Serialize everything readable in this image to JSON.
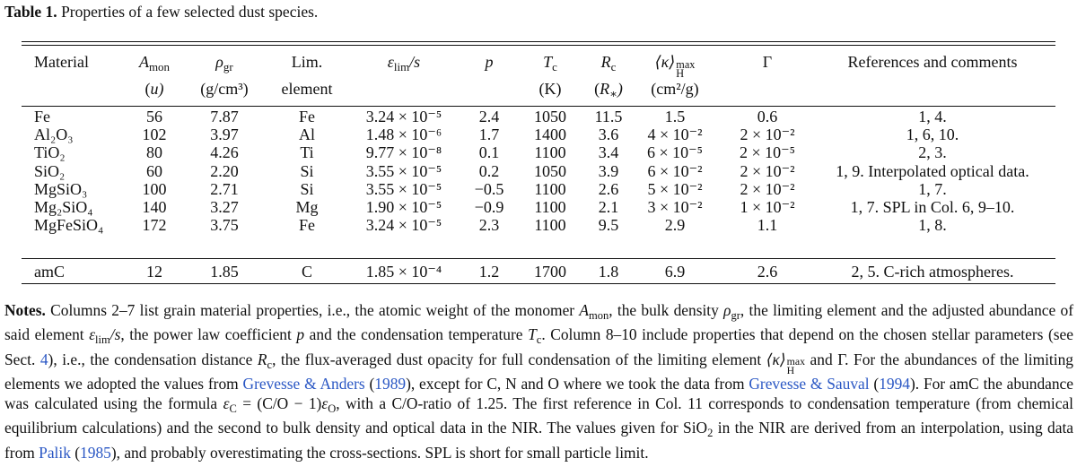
{
  "title": {
    "label": "Table 1.",
    "text": "Properties of a few selected dust species."
  },
  "table": {
    "header": [
      {
        "text": "Material"
      },
      {
        "base": "A",
        "sub": "mon"
      },
      {
        "base": "ρ",
        "sub": "gr"
      },
      {
        "text": "Lim."
      },
      {
        "base": "ε",
        "sub": "lim",
        "after": "/s"
      },
      {
        "base": "p"
      },
      {
        "base": "T",
        "sub": "c"
      },
      {
        "base": "R",
        "sub": "c"
      },
      {
        "base": "⟨κ⟩",
        "sub": "H",
        "sup": "max"
      },
      {
        "text": "Γ"
      },
      {
        "text": "References and comments"
      }
    ],
    "units": [
      null,
      {
        "before": "(",
        "base": "u",
        "after": ")"
      },
      {
        "text": "(g/cm³)"
      },
      {
        "text": "element"
      },
      null,
      null,
      {
        "text": "(K)"
      },
      {
        "before": "(",
        "base": "R",
        "sub": "∗",
        "after": ")"
      },
      {
        "text": "(cm²/g)"
      },
      null,
      null
    ],
    "rows": [
      [
        "Fe",
        "56",
        "7.87",
        "Fe",
        "3.24 × 10⁻⁵",
        "2.4",
        "1050",
        "11.5",
        "1.5",
        "0.6",
        "1, 4."
      ],
      [
        "Al₂O₃",
        "102",
        "3.97",
        "Al",
        "1.48 × 10⁻⁶",
        "1.7",
        "1400",
        "3.6",
        "4 × 10⁻²",
        "2 × 10⁻²",
        "1, 6, 10."
      ],
      [
        "TiO₂",
        "80",
        "4.26",
        "Ti",
        "9.77 × 10⁻⁸",
        "0.1",
        "1100",
        "3.4",
        "6 × 10⁻⁵",
        "2 × 10⁻⁵",
        "2, 3."
      ],
      [
        "SiO₂",
        "60",
        "2.20",
        "Si",
        "3.55 × 10⁻⁵",
        "0.2",
        "1050",
        "3.9",
        "6 × 10⁻²",
        "2 × 10⁻²",
        "1, 9. Interpolated optical data."
      ],
      [
        "MgSiO₃",
        "100",
        "2.71",
        "Si",
        "3.55 × 10⁻⁵",
        "−0.5",
        "1100",
        "2.6",
        "5 × 10⁻²",
        "2 × 10⁻²",
        "1, 7."
      ],
      [
        "Mg₂SiO₄",
        "140",
        "3.27",
        "Mg",
        "1.90 × 10⁻⁵",
        "−0.9",
        "1100",
        "2.1",
        "3 × 10⁻²",
        "1 × 10⁻²",
        "1, 7. SPL in Col. 6, 9–10."
      ],
      [
        "MgFeSiO₄",
        "172",
        "3.75",
        "Fe",
        "3.24 × 10⁻⁵",
        "2.3",
        "1100",
        "9.5",
        "2.9",
        "1.1",
        "1, 8."
      ],
      [
        "amC",
        "12",
        "1.85",
        "C",
        "1.85 × 10⁻⁴",
        "1.2",
        "1700",
        "1.8",
        "6.9",
        "2.6",
        "2, 5. C-rich atmospheres."
      ]
    ]
  },
  "notes": [
    "Notes.",
    " Columns 2–7 list grain material properties, i.e., the atomic weight of the monomer ",
    "A",
    "mon",
    ", the bulk density ",
    "ρ",
    "gr",
    ", the limiting element and the adjusted abundance of said element ",
    "ε",
    "lim",
    "/s",
    ", the power law coefficient ",
    "p",
    " and the condensation temperature ",
    "T",
    "c",
    ". Column 8–10 include properties that depend on the chosen stellar parameters (see Sect. ",
    "4",
    "), i.e., the condensation distance ",
    "R",
    "c",
    ", the flux-averaged dust opacity for full condensation of the limiting element ",
    "⟨κ⟩",
    "H",
    "max",
    " and Γ. For the abundances of the limiting elements we adopted the values from ",
    "Grevesse & Anders",
    " (",
    "1989",
    "), except for C, N and O where we took the data from ",
    "Grevesse & Sauval",
    " (",
    "1994",
    "). For amC the abundance was calculated using the formula ",
    "ε",
    "C",
    " = (C/O − 1)",
    "ε",
    "O",
    ", with a C/O-ratio of 1.25. The first reference in Col. 11 corresponds to condensation temperature (from chemical equilibrium calculations) and the second to bulk density and optical data in the NIR. The values given for SiO",
    "2",
    " in the NIR are derived from an interpolation, using data from ",
    "Palik",
    " (",
    "1985",
    "), and probably overestimating the cross-sections. SPL is short for small particle limit."
  ]
}
